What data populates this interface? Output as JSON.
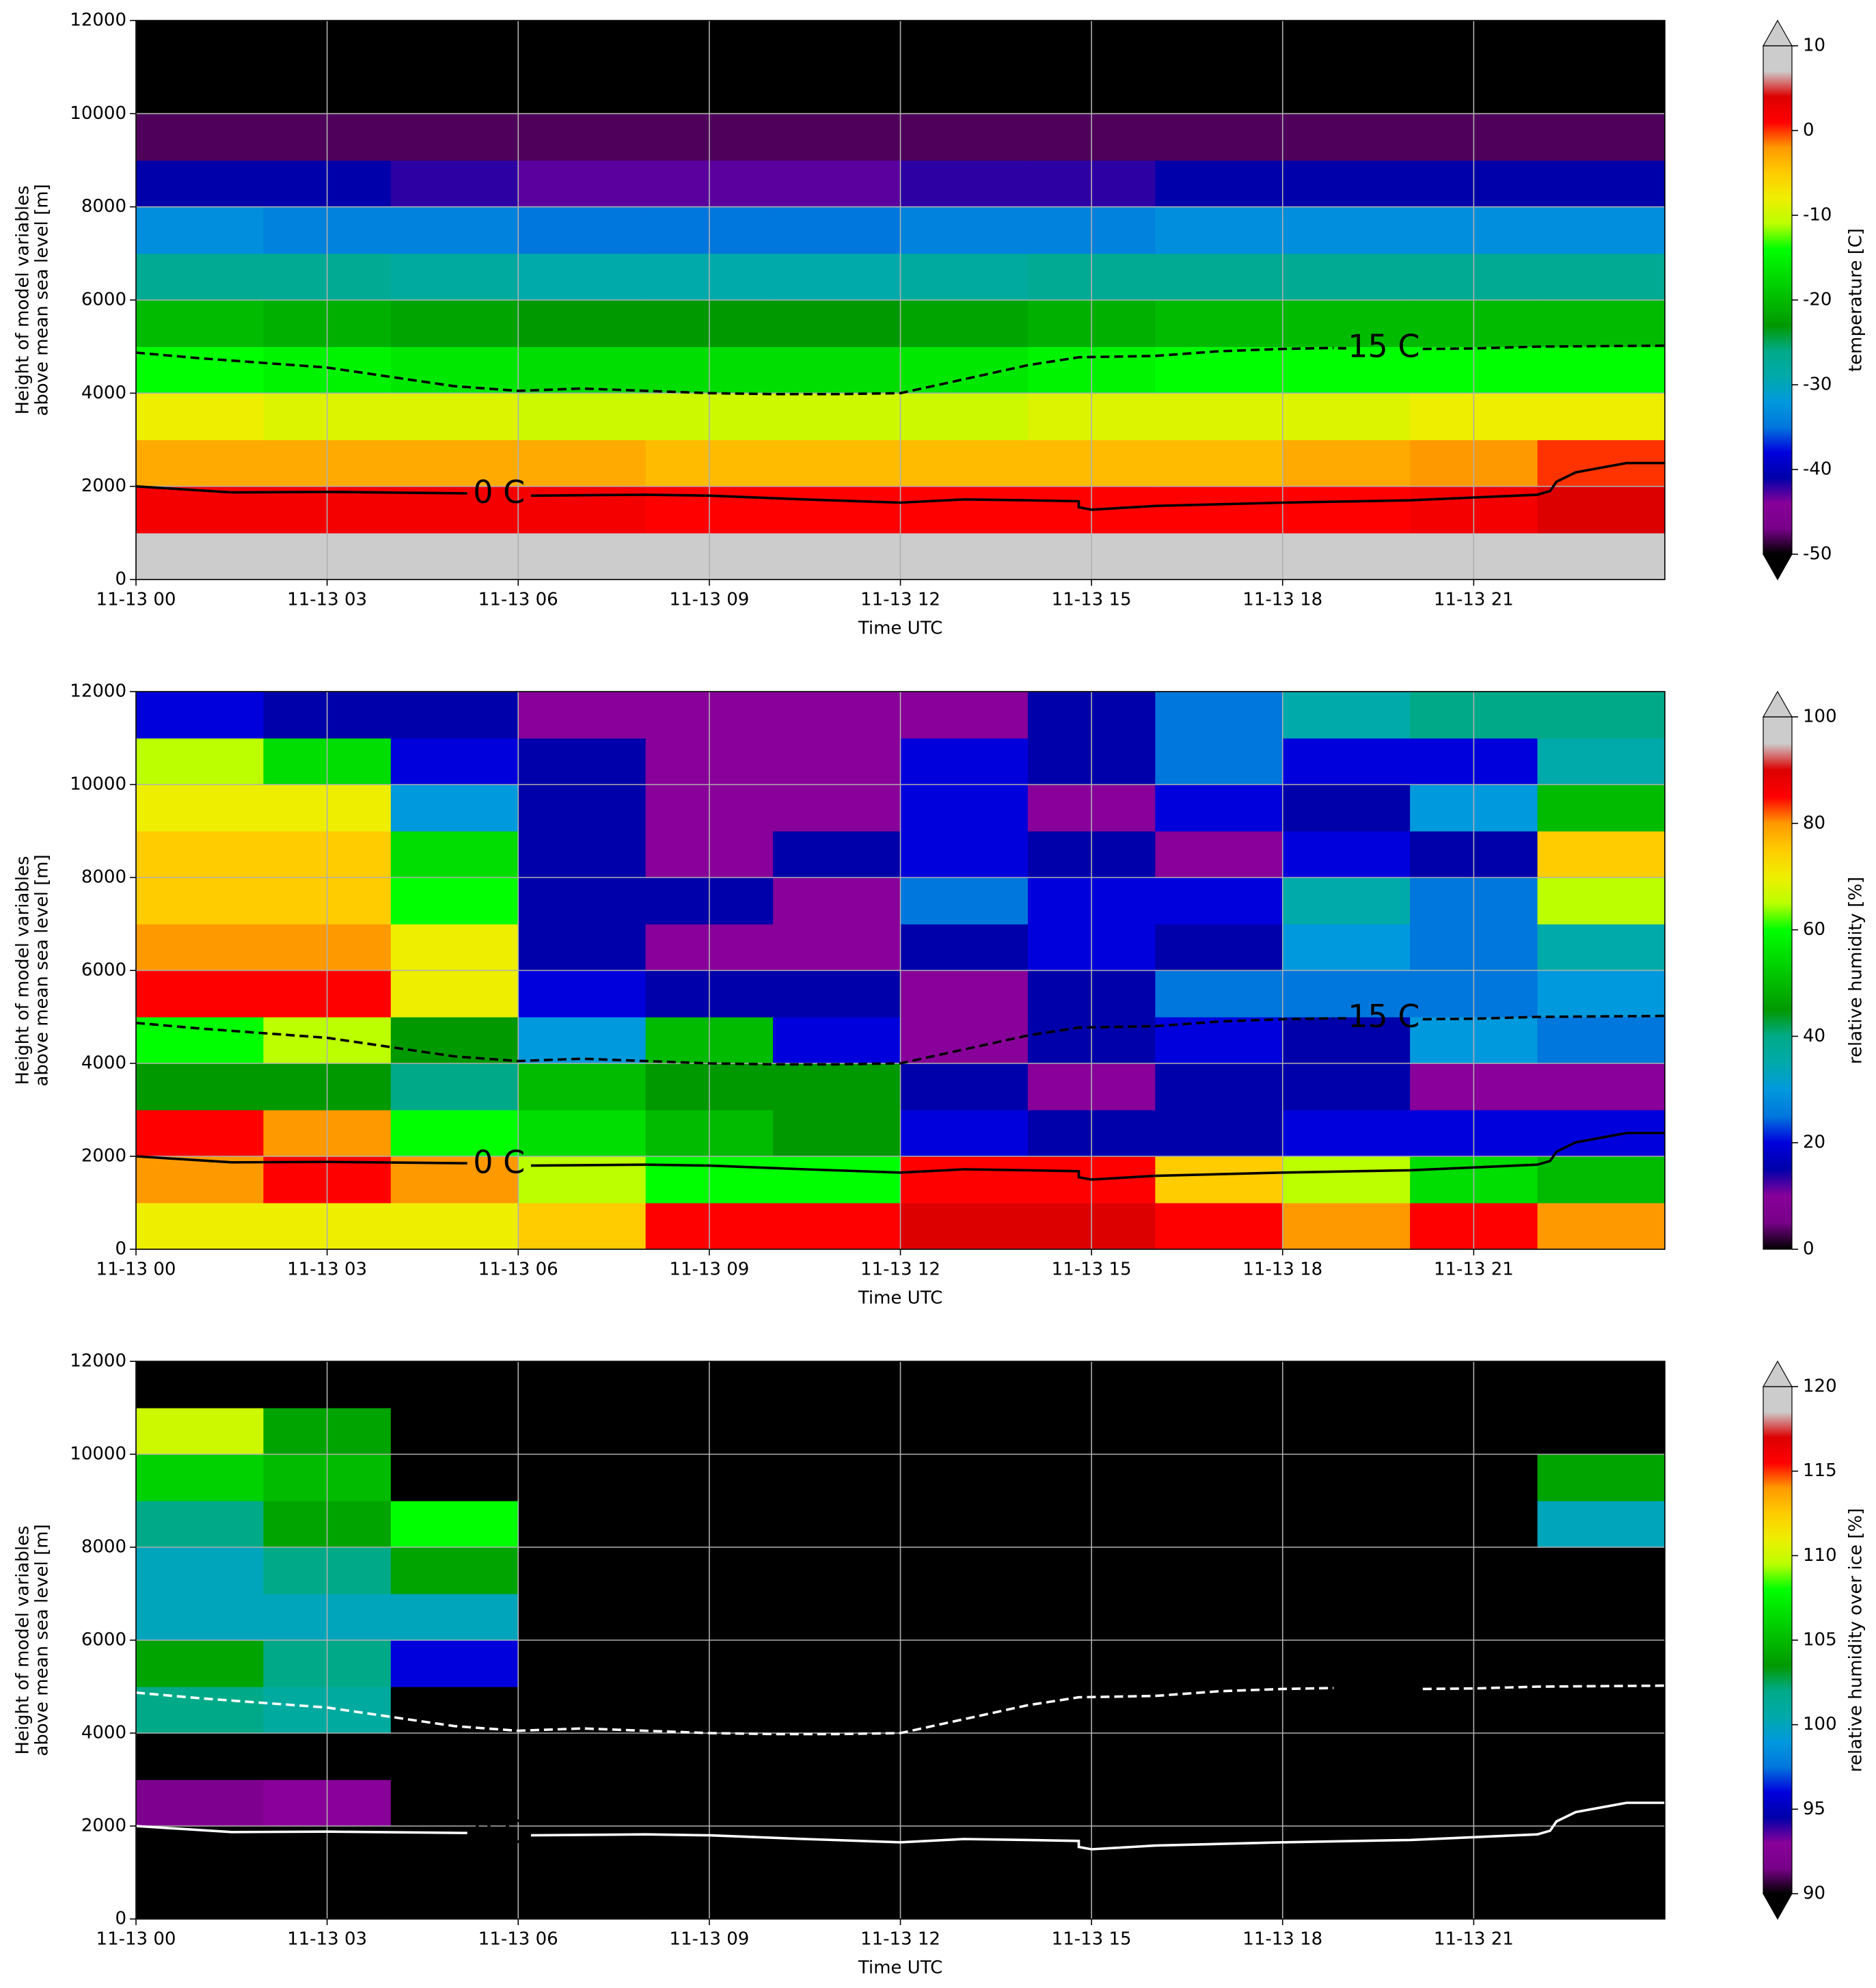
{
  "chart_data": [
    {
      "type": "heatmap",
      "cmap": "nipy_spectral",
      "clim": [
        -50,
        10
      ],
      "cticks": [
        -50,
        -40,
        -30,
        -20,
        -10,
        0,
        10
      ],
      "extend": "both",
      "colorbar_label": "temperature [C]",
      "xlabel": "Time UTC",
      "ylabel": [
        "Height of model variables",
        "above mean sea level [m]"
      ],
      "xlim": [
        0,
        24
      ],
      "ylim": [
        0,
        12000
      ],
      "grid": true,
      "xticks": [
        {
          "value": 0,
          "label": "11-13 00"
        },
        {
          "value": 3,
          "label": "11-13 03"
        },
        {
          "value": 6,
          "label": "11-13 06"
        },
        {
          "value": 9,
          "label": "11-13 09"
        },
        {
          "value": 12,
          "label": "11-13 12"
        },
        {
          "value": 15,
          "label": "11-13 15"
        },
        {
          "value": 18,
          "label": "11-13 18"
        },
        {
          "value": 21,
          "label": "11-13 21"
        }
      ],
      "yticks": [
        0,
        2000,
        4000,
        6000,
        8000,
        10000,
        12000
      ],
      "x": [
        0,
        2,
        4,
        6,
        8,
        10,
        12,
        14,
        16,
        18,
        20,
        22,
        24
      ],
      "y": [
        0,
        1000,
        2000,
        3000,
        4000,
        5000,
        6000,
        7000,
        8000,
        9000,
        10000,
        11000,
        12000
      ],
      "z": [
        [
          8,
          8,
          8,
          8,
          7,
          7,
          7,
          7,
          7,
          7,
          7,
          8
        ],
        [
          2,
          2,
          2,
          2,
          1,
          1,
          1,
          1,
          1,
          1,
          2,
          4
        ],
        [
          -3,
          -3,
          -3,
          -3,
          -4,
          -4,
          -4,
          -4,
          -4,
          -3,
          -2,
          0
        ],
        [
          -8,
          -9,
          -9,
          -10,
          -10,
          -10,
          -10,
          -9,
          -9,
          -9,
          -8,
          -8
        ],
        [
          -14,
          -15,
          -16,
          -17,
          -17,
          -17,
          -16,
          -15,
          -14,
          -14,
          -14,
          -14
        ],
        [
          -20,
          -21,
          -22,
          -23,
          -23,
          -23,
          -22,
          -21,
          -20,
          -20,
          -20,
          -20
        ],
        [
          -27,
          -27,
          -28,
          -29,
          -29,
          -29,
          -28,
          -27,
          -27,
          -27,
          -27,
          -27
        ],
        [
          -33,
          -34,
          -34,
          -35,
          -35,
          -35,
          -34,
          -34,
          -33,
          -33,
          -33,
          -33
        ],
        [
          -41,
          -41,
          -42,
          -43,
          -43,
          -43,
          -42,
          -42,
          -41,
          -41,
          -41,
          -41
        ],
        [
          -48,
          -48,
          -48,
          -48,
          -48,
          -48,
          -48,
          -48,
          -48,
          -48,
          -48,
          -48
        ],
        [
          -55,
          -55,
          -55,
          -55,
          -55,
          -55,
          -55,
          -55,
          -55,
          -55,
          -55,
          -55
        ],
        [
          -55,
          -55,
          -55,
          -55,
          -55,
          -55,
          -55,
          -55,
          -55,
          -55,
          -55,
          -55
        ]
      ],
      "series": [
        {
          "name": "0 C",
          "color": "#000000",
          "style": "solid",
          "x": [
            0,
            1.5,
            3,
            5.2,
            null,
            6.2,
            8,
            9,
            10.5,
            12,
            13,
            14,
            14.8,
            14.8,
            15,
            16,
            18,
            20,
            21,
            22,
            22.2,
            22.3,
            22.6,
            23,
            23.4,
            24
          ],
          "values": [
            2000,
            1870,
            1880,
            1850,
            null,
            1800,
            1820,
            1800,
            1720,
            1650,
            1720,
            1700,
            1680,
            1550,
            1500,
            1580,
            1650,
            1700,
            1760,
            1820,
            1900,
            2100,
            2300,
            2400,
            2500,
            2500
          ]
        },
        {
          "name": "-15 C",
          "color": "#000000",
          "style": "dashed",
          "x": [
            0,
            1,
            2,
            3,
            4,
            5,
            6,
            7,
            8,
            9,
            10,
            11,
            12,
            13,
            14,
            14.8,
            16,
            17,
            18,
            18.8,
            null,
            20.2,
            21,
            22,
            24
          ],
          "values": [
            4870,
            4750,
            4650,
            4550,
            4350,
            4150,
            4050,
            4100,
            4050,
            4000,
            3980,
            3980,
            4000,
            4300,
            4600,
            4770,
            4800,
            4900,
            4950,
            4970,
            null,
            4950,
            4960,
            5000,
            5020
          ]
        }
      ]
    },
    {
      "type": "heatmap",
      "cmap": "nipy_spectral",
      "clim": [
        0,
        100
      ],
      "cticks": [
        0,
        20,
        40,
        60,
        80,
        100
      ],
      "extend": "max",
      "colorbar_label": "relative humidity [%]",
      "xlabel": "Time UTC",
      "ylabel": [
        "Height of model variables",
        "above mean sea level [m]"
      ],
      "xlim": [
        0,
        24
      ],
      "ylim": [
        0,
        12000
      ],
      "grid": true,
      "xticks": [
        {
          "value": 0,
          "label": "11-13 00"
        },
        {
          "value": 3,
          "label": "11-13 03"
        },
        {
          "value": 6,
          "label": "11-13 06"
        },
        {
          "value": 9,
          "label": "11-13 09"
        },
        {
          "value": 12,
          "label": "11-13 12"
        },
        {
          "value": 15,
          "label": "11-13 15"
        },
        {
          "value": 18,
          "label": "11-13 18"
        },
        {
          "value": 21,
          "label": "11-13 21"
        }
      ],
      "yticks": [
        0,
        2000,
        4000,
        6000,
        8000,
        10000,
        12000
      ],
      "x": [
        0,
        2,
        4,
        6,
        8,
        10,
        12,
        14,
        16,
        18,
        20,
        22,
        24
      ],
      "y": [
        0,
        1000,
        2000,
        3000,
        4000,
        5000,
        6000,
        7000,
        8000,
        9000,
        10000,
        11000,
        12000
      ],
      "z": [
        [
          70,
          70,
          70,
          75,
          85,
          85,
          90,
          90,
          85,
          80,
          85,
          80
        ],
        [
          80,
          85,
          80,
          65,
          60,
          60,
          85,
          85,
          75,
          65,
          55,
          50
        ],
        [
          85,
          80,
          60,
          55,
          50,
          45,
          20,
          15,
          15,
          20,
          20,
          20
        ],
        [
          45,
          45,
          40,
          50,
          45,
          45,
          15,
          10,
          15,
          15,
          10,
          10
        ],
        [
          60,
          65,
          45,
          30,
          50,
          20,
          10,
          15,
          20,
          15,
          30,
          25
        ],
        [
          85,
          85,
          70,
          20,
          15,
          15,
          10,
          15,
          25,
          25,
          25,
          30
        ],
        [
          80,
          80,
          70,
          15,
          10,
          10,
          15,
          20,
          15,
          30,
          25,
          35
        ],
        [
          75,
          75,
          60,
          15,
          15,
          10,
          25,
          20,
          20,
          35,
          25,
          65
        ],
        [
          75,
          75,
          55,
          15,
          10,
          15,
          20,
          15,
          10,
          20,
          15,
          75
        ],
        [
          70,
          70,
          30,
          15,
          10,
          10,
          20,
          10,
          20,
          15,
          30,
          50
        ],
        [
          65,
          55,
          20,
          15,
          10,
          10,
          20,
          15,
          25,
          20,
          20,
          35
        ],
        [
          20,
          15,
          15,
          10,
          10,
          10,
          10,
          15,
          25,
          35,
          40,
          40
        ]
      ],
      "series": [
        {
          "name": "0 C",
          "color": "#000000",
          "style": "solid",
          "x": [
            0,
            1.5,
            3,
            5.2,
            null,
            6.2,
            8,
            9,
            10.5,
            12,
            13,
            14,
            14.8,
            14.8,
            15,
            16,
            18,
            20,
            21,
            22,
            22.2,
            22.3,
            22.6,
            23,
            23.4,
            24
          ],
          "values": [
            2000,
            1870,
            1880,
            1850,
            null,
            1800,
            1820,
            1800,
            1720,
            1650,
            1720,
            1700,
            1680,
            1550,
            1500,
            1580,
            1650,
            1700,
            1760,
            1820,
            1900,
            2100,
            2300,
            2400,
            2500,
            2500
          ]
        },
        {
          "name": "-15 C",
          "color": "#000000",
          "style": "dashed",
          "x": [
            0,
            1,
            2,
            3,
            4,
            5,
            6,
            7,
            8,
            9,
            10,
            11,
            12,
            13,
            14,
            14.8,
            16,
            17,
            18,
            18.8,
            null,
            20.2,
            21,
            22,
            24
          ],
          "values": [
            4870,
            4750,
            4650,
            4550,
            4350,
            4150,
            4050,
            4100,
            4050,
            4000,
            3980,
            3980,
            4000,
            4300,
            4600,
            4770,
            4800,
            4900,
            4950,
            4970,
            null,
            4950,
            4960,
            5000,
            5020
          ]
        }
      ]
    },
    {
      "type": "heatmap",
      "cmap": "nipy_spectral",
      "clim": [
        90,
        120
      ],
      "cticks": [
        90,
        95,
        100,
        105,
        110,
        115,
        120
      ],
      "extend": "both",
      "colorbar_label": "relative humidity over ice [%]",
      "xlabel": "Time UTC",
      "ylabel": [
        "Height of model variables",
        "above mean sea level [m]"
      ],
      "xlim": [
        0,
        24
      ],
      "ylim": [
        0,
        12000
      ],
      "grid": true,
      "xticks": [
        {
          "value": 0,
          "label": "11-13 00"
        },
        {
          "value": 3,
          "label": "11-13 03"
        },
        {
          "value": 6,
          "label": "11-13 06"
        },
        {
          "value": 9,
          "label": "11-13 09"
        },
        {
          "value": 12,
          "label": "11-13 12"
        },
        {
          "value": 15,
          "label": "11-13 15"
        },
        {
          "value": 18,
          "label": "11-13 18"
        },
        {
          "value": 21,
          "label": "11-13 21"
        }
      ],
      "yticks": [
        0,
        2000,
        4000,
        6000,
        8000,
        10000,
        12000
      ],
      "x": [
        0,
        2,
        4,
        6,
        8,
        10,
        12,
        14,
        16,
        18,
        20,
        22,
        24
      ],
      "y": [
        0,
        1000,
        2000,
        3000,
        4000,
        5000,
        6000,
        7000,
        8000,
        9000,
        10000,
        11000,
        12000
      ],
      "z": [
        [
          80,
          80,
          80,
          80,
          80,
          80,
          80,
          80,
          80,
          80,
          80,
          80
        ],
        [
          80,
          80,
          80,
          80,
          80,
          80,
          80,
          80,
          80,
          80,
          80,
          80
        ],
        [
          92,
          93,
          80,
          80,
          80,
          80,
          80,
          80,
          80,
          80,
          80,
          80
        ],
        [
          80,
          80,
          80,
          80,
          80,
          80,
          80,
          80,
          80,
          80,
          80,
          80
        ],
        [
          102,
          101,
          80,
          80,
          80,
          80,
          80,
          80,
          80,
          80,
          80,
          80
        ],
        [
          104,
          102,
          96,
          80,
          80,
          80,
          80,
          80,
          80,
          80,
          80,
          80
        ],
        [
          100,
          100,
          100,
          80,
          80,
          80,
          80,
          80,
          80,
          80,
          80,
          80
        ],
        [
          100,
          102,
          104,
          80,
          80,
          80,
          80,
          80,
          80,
          80,
          80,
          80
        ],
        [
          102,
          104,
          108,
          80,
          80,
          80,
          80,
          80,
          80,
          80,
          80,
          100
        ],
        [
          106,
          105,
          80,
          80,
          80,
          80,
          80,
          80,
          80,
          80,
          80,
          104
        ],
        [
          110,
          104,
          80,
          80,
          80,
          80,
          80,
          80,
          80,
          80,
          80,
          80
        ],
        [
          80,
          80,
          80,
          80,
          80,
          80,
          80,
          80,
          80,
          80,
          80,
          80
        ]
      ],
      "series": [
        {
          "name": "0 C",
          "color": "#ffffff",
          "style": "solid",
          "x": [
            0,
            1.5,
            3,
            5.2,
            null,
            6.2,
            8,
            9,
            10.5,
            12,
            13,
            14,
            14.8,
            14.8,
            15,
            16,
            18,
            20,
            21,
            22,
            22.2,
            22.3,
            22.6,
            23,
            23.4,
            24
          ],
          "values": [
            2000,
            1870,
            1880,
            1850,
            null,
            1800,
            1820,
            1800,
            1720,
            1650,
            1720,
            1700,
            1680,
            1550,
            1500,
            1580,
            1650,
            1700,
            1760,
            1820,
            1900,
            2100,
            2300,
            2400,
            2500,
            2500
          ]
        },
        {
          "name": "-15 C",
          "color": "#ffffff",
          "style": "dashed",
          "x": [
            0,
            1,
            2,
            3,
            4,
            5,
            6,
            7,
            8,
            9,
            10,
            11,
            12,
            13,
            14,
            14.8,
            16,
            17,
            18,
            18.8,
            null,
            20.2,
            21,
            22,
            24
          ],
          "values": [
            4870,
            4750,
            4650,
            4550,
            4350,
            4150,
            4050,
            4100,
            4050,
            4000,
            3980,
            3980,
            4000,
            4300,
            4600,
            4770,
            4800,
            4900,
            4950,
            4970,
            null,
            4950,
            4960,
            5000,
            5020
          ]
        }
      ]
    }
  ]
}
